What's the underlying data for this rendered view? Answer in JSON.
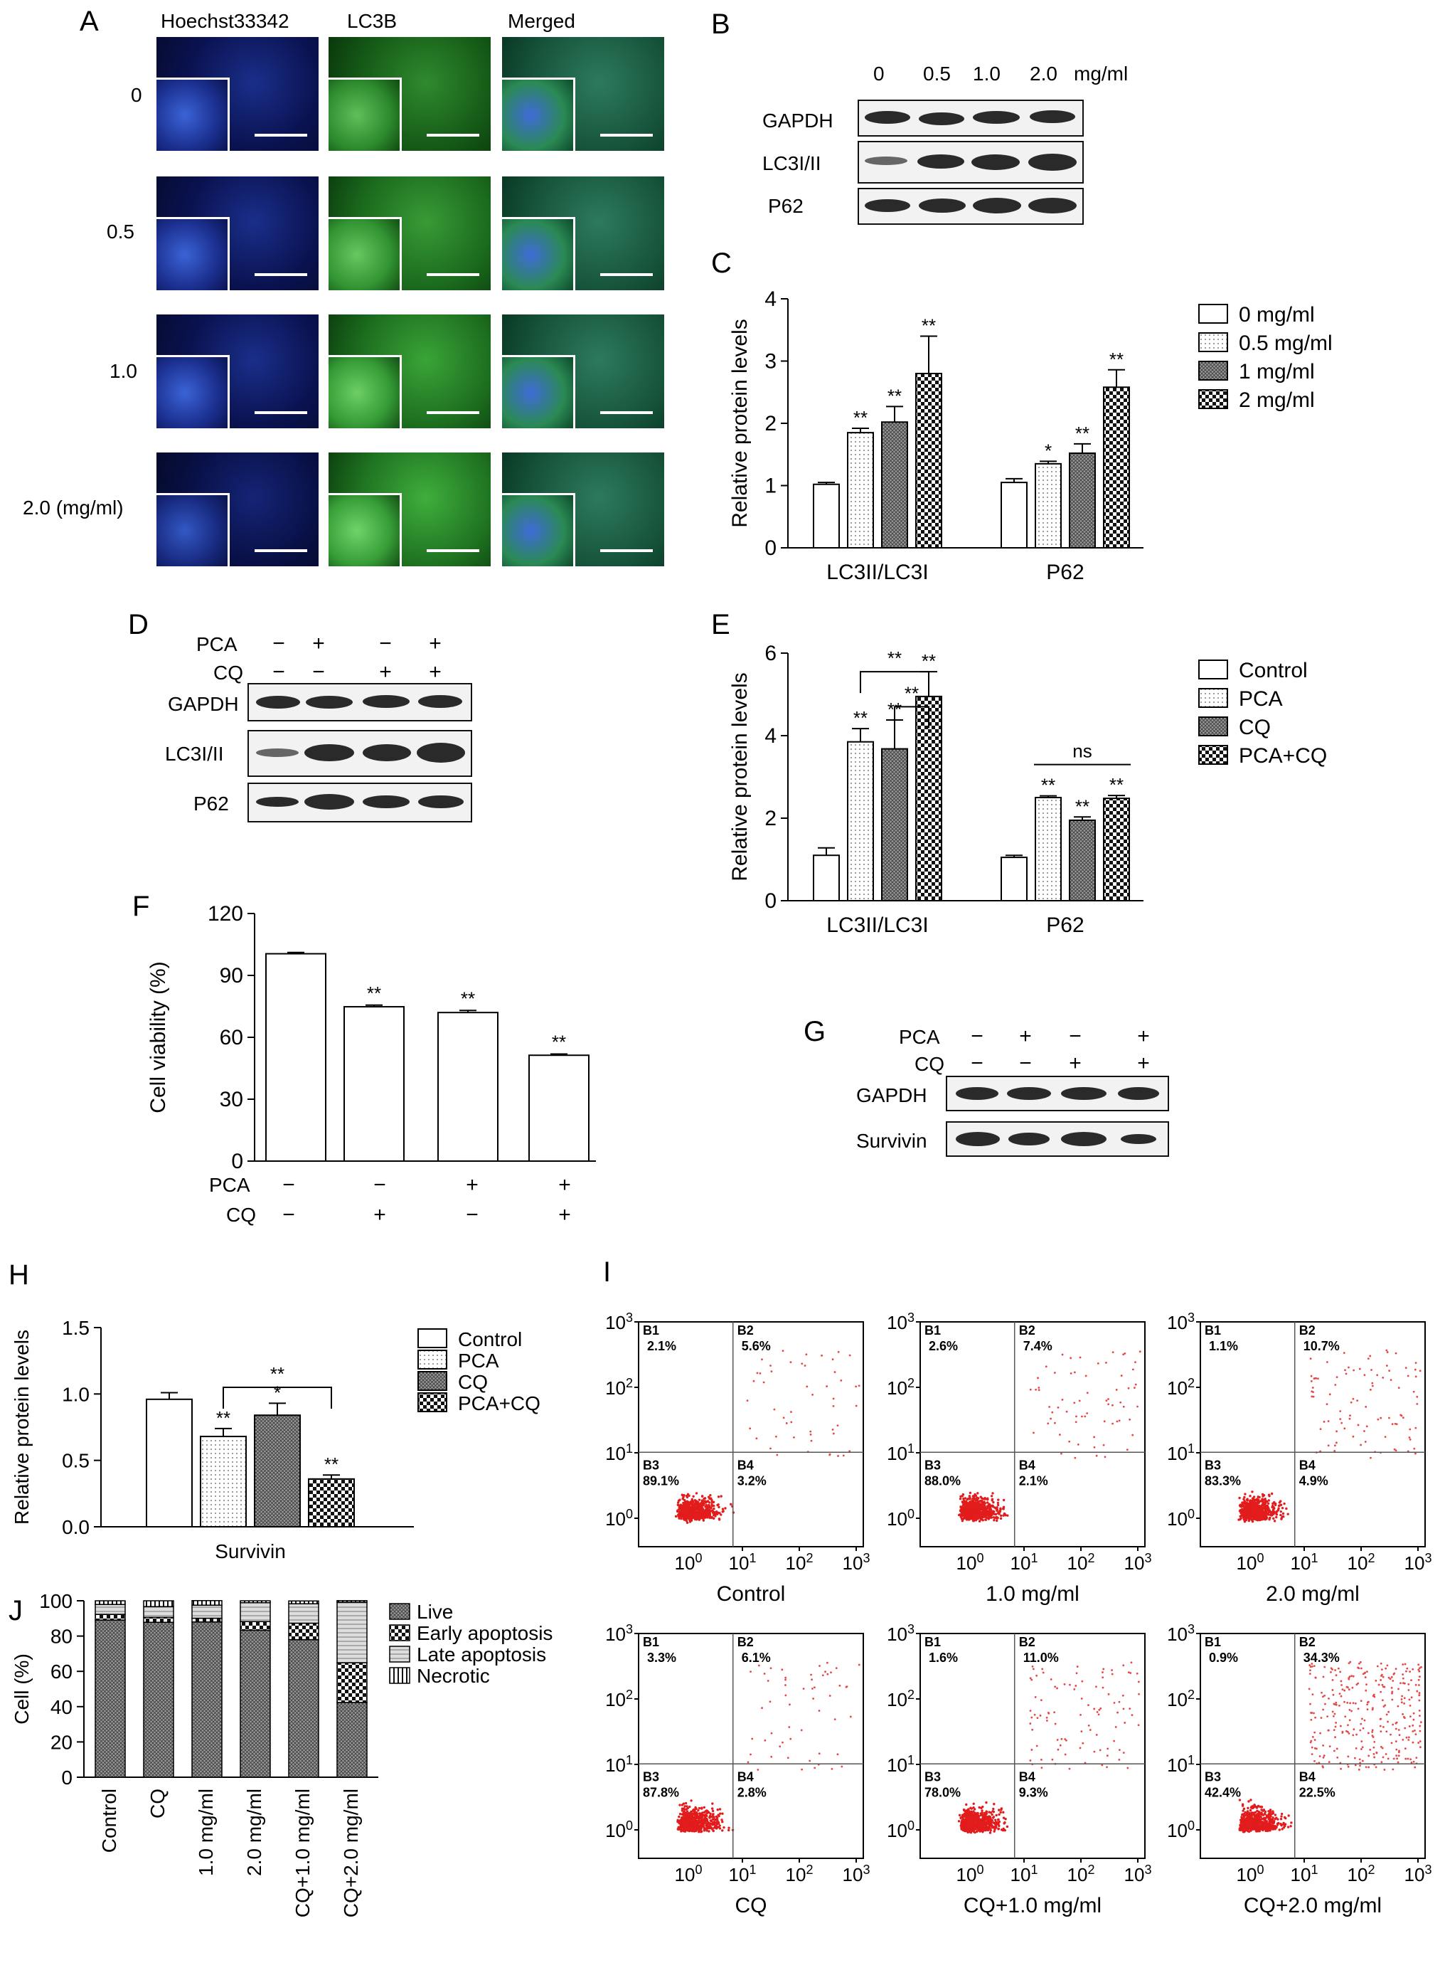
{
  "panels": {
    "A": "A",
    "B": "B",
    "C": "C",
    "D": "D",
    "E": "E",
    "F": "F",
    "G": "G",
    "H": "H",
    "I": "I",
    "J": "J"
  },
  "panelA": {
    "col_headers": [
      "Hoechst33342",
      "LC3B",
      "Merged"
    ],
    "row_labels": [
      "0",
      "0.5",
      "1.0",
      "2.0 (mg/ml)"
    ]
  },
  "panelB": {
    "conc_labels": [
      "0",
      "0.5",
      "1.0",
      "2.0"
    ],
    "unit": "mg/ml",
    "blot_labels": [
      "GAPDH",
      "LC3I/II",
      "P62"
    ]
  },
  "panelD": {
    "row_pca": "PCA",
    "row_cq": "CQ",
    "pca_signs": [
      "−",
      "+",
      "−",
      "+"
    ],
    "cq_signs": [
      "−",
      "−",
      "+",
      "+"
    ],
    "blot_labels": [
      "GAPDH",
      "LC3I/II",
      "P62"
    ]
  },
  "panelF_rows": {
    "row_pca": "PCA",
    "row_cq": "CQ",
    "pca_signs": [
      "−",
      "−",
      "+",
      "+"
    ],
    "cq_signs": [
      "−",
      "+",
      "−",
      "+"
    ]
  },
  "panelG": {
    "row_pca": "PCA",
    "row_cq": "CQ",
    "pca_signs": [
      "−",
      "+",
      "−",
      "+"
    ],
    "cq_signs": [
      "−",
      "−",
      "+",
      "+"
    ],
    "blot_labels": [
      "GAPDH",
      "Survivin"
    ]
  },
  "chart_data": [
    {
      "id": "C",
      "type": "bar",
      "ylabel": "Relative protein levels",
      "ylim": [
        0,
        4
      ],
      "yticks": [
        "0",
        "1",
        "2",
        "3",
        "4"
      ],
      "categories": [
        "LC3II/LC3I",
        "P62"
      ],
      "series": [
        {
          "name": "0 mg/ml",
          "values": [
            1.02,
            1.05
          ],
          "errors": [
            0.03,
            0.06
          ],
          "sig": [
            "",
            ""
          ]
        },
        {
          "name": "0.5 mg/ml",
          "values": [
            1.85,
            1.35
          ],
          "errors": [
            0.07,
            0.04
          ],
          "sig": [
            "**",
            "*"
          ]
        },
        {
          "name": "1 mg/ml",
          "values": [
            2.02,
            1.52
          ],
          "errors": [
            0.25,
            0.15
          ],
          "sig": [
            "**",
            "**"
          ]
        },
        {
          "name": "2 mg/ml",
          "values": [
            2.8,
            2.58
          ],
          "errors": [
            0.6,
            0.28
          ],
          "sig": [
            "**",
            "**"
          ]
        }
      ],
      "legend": "right"
    },
    {
      "id": "E",
      "type": "bar",
      "ylabel": "Relative protein levels",
      "ylim": [
        0,
        6
      ],
      "yticks": [
        "0",
        "2",
        "4",
        "6"
      ],
      "categories": [
        "LC3II/LC3I",
        "P62"
      ],
      "series": [
        {
          "name": "Control",
          "values": [
            1.1,
            1.05
          ],
          "errors": [
            0.18,
            0.05
          ],
          "sig": [
            "",
            ""
          ]
        },
        {
          "name": "PCA",
          "values": [
            3.85,
            2.5
          ],
          "errors": [
            0.32,
            0.04
          ],
          "sig": [
            "**",
            "**"
          ]
        },
        {
          "name": "CQ",
          "values": [
            3.68,
            1.95
          ],
          "errors": [
            0.7,
            0.08
          ],
          "sig": [
            "**",
            "**"
          ]
        },
        {
          "name": "PCA+CQ",
          "values": [
            4.95,
            2.48
          ],
          "errors": [
            0.6,
            0.07
          ],
          "sig": [
            "**",
            "**"
          ]
        }
      ],
      "brackets": [
        {
          "label": "**",
          "group": 0,
          "from": 1,
          "to": 3,
          "level": 5.55
        },
        {
          "label": "**",
          "group": 0,
          "from": 2,
          "to": 3,
          "level": 4.7
        },
        {
          "label": "ns",
          "group": 1,
          "from": 1,
          "to": 3,
          "level": 3.3
        }
      ],
      "legend": "right"
    },
    {
      "id": "F",
      "type": "bar",
      "ylabel": "Cell viability (%)",
      "ylim": [
        0,
        120
      ],
      "yticks": [
        "0",
        "30",
        "60",
        "90",
        "120"
      ],
      "values": [
        100.5,
        74.8,
        72.0,
        51.3
      ],
      "errors": [
        0.6,
        0.8,
        1.0,
        0.6
      ],
      "sig": [
        "",
        "**",
        "**",
        "**"
      ]
    },
    {
      "id": "H",
      "type": "bar",
      "ylabel": "Relative protein levels",
      "ylim": [
        0,
        1.5
      ],
      "yticks": [
        "0.0",
        "0.5",
        "1.0",
        "1.5"
      ],
      "categories": [
        "Survivin"
      ],
      "series": [
        {
          "name": "Control",
          "values": [
            0.96
          ],
          "errors": [
            0.05
          ],
          "sig": [
            ""
          ]
        },
        {
          "name": "PCA",
          "values": [
            0.68
          ],
          "errors": [
            0.06
          ],
          "sig": [
            "**"
          ]
        },
        {
          "name": "CQ",
          "values": [
            0.84
          ],
          "errors": [
            0.09
          ],
          "sig": [
            "*"
          ]
        },
        {
          "name": "PCA+CQ",
          "values": [
            0.36
          ],
          "errors": [
            0.03
          ],
          "sig": [
            "**"
          ]
        }
      ],
      "brackets": [
        {
          "label": "**",
          "group": 0,
          "from": 1,
          "to": 3,
          "level": 1.05
        }
      ],
      "legend": "right"
    },
    {
      "id": "J",
      "type": "bar",
      "stacked": true,
      "ylabel": "Cell (%)",
      "ylim": [
        0,
        100
      ],
      "yticks": [
        "0",
        "20",
        "40",
        "60",
        "80",
        "100"
      ],
      "categories": [
        "Control",
        "CQ",
        "1.0 mg/ml",
        "2.0 mg/ml",
        "CQ+1.0 mg/ml",
        "CQ+2.0 mg/ml"
      ],
      "series": [
        {
          "name": "Live",
          "values": [
            89.1,
            87.8,
            88.0,
            83.3,
            78.0,
            42.4
          ]
        },
        {
          "name": "Early apoptosis",
          "values": [
            3.2,
            2.8,
            2.1,
            4.9,
            9.3,
            22.5
          ]
        },
        {
          "name": "Late apoptosis",
          "values": [
            5.6,
            6.1,
            7.4,
            10.7,
            11.0,
            34.3
          ]
        },
        {
          "name": "Necrotic",
          "values": [
            2.1,
            3.3,
            2.6,
            1.1,
            1.6,
            0.9
          ]
        }
      ],
      "legend": "right"
    },
    {
      "id": "I",
      "type": "scatter",
      "axis_ticks": [
        "10",
        "0",
        "1",
        "2",
        "3"
      ],
      "plots": [
        {
          "xlabel": "Control",
          "q": {
            "B1": "2.1%",
            "B2": "5.6%",
            "B3": "89.1%",
            "B4": "3.2%"
          },
          "ur": 0.056
        },
        {
          "xlabel": "1.0 mg/ml",
          "q": {
            "B1": "2.6%",
            "B2": "7.4%",
            "B3": "88.0%",
            "B4": "2.1%"
          },
          "ur": 0.074
        },
        {
          "xlabel": "2.0 mg/ml",
          "q": {
            "B1": "1.1%",
            "B2": "10.7%",
            "B3": "83.3%",
            "B4": "4.9%"
          },
          "ur": 0.107
        },
        {
          "xlabel": "CQ",
          "q": {
            "B1": "3.3%",
            "B2": "6.1%",
            "B3": "87.8%",
            "B4": "2.8%"
          },
          "ur": 0.061
        },
        {
          "xlabel": "CQ+1.0 mg/ml",
          "q": {
            "B1": "1.6%",
            "B2": "11.0%",
            "B3": "78.0%",
            "B4": "9.3%"
          },
          "ur": 0.11
        },
        {
          "xlabel": "CQ+2.0 mg/ml",
          "q": {
            "B1": "0.9%",
            "B2": "34.3%",
            "B3": "42.4%",
            "B4": "22.5%"
          },
          "ur": 0.343
        }
      ]
    }
  ]
}
